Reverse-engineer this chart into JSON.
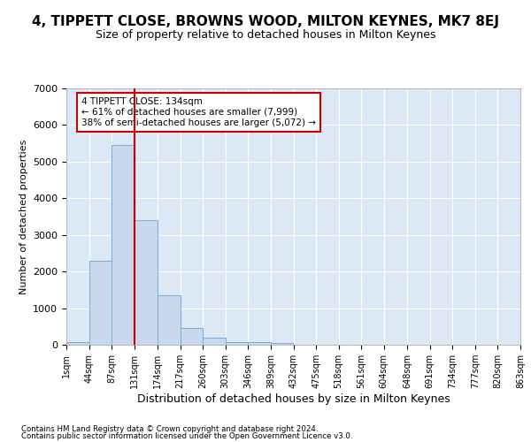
{
  "title": "4, TIPPETT CLOSE, BROWNS WOOD, MILTON KEYNES, MK7 8EJ",
  "subtitle": "Size of property relative to detached houses in Milton Keynes",
  "xlabel": "Distribution of detached houses by size in Milton Keynes",
  "ylabel": "Number of detached properties",
  "bin_edges": [
    1,
    44,
    87,
    131,
    174,
    217,
    260,
    303,
    346,
    389,
    432,
    475,
    518,
    561,
    604,
    648,
    691,
    734,
    777,
    820,
    863
  ],
  "bar_heights": [
    80,
    2300,
    5450,
    3400,
    1350,
    470,
    185,
    80,
    80,
    50,
    5,
    5,
    3,
    2,
    1,
    1,
    1,
    1,
    1,
    1
  ],
  "bar_color": "#c8d9ed",
  "bar_edgecolor": "#7aadd4",
  "vline_x": 131,
  "vline_color": "#cc0000",
  "annotation_text": "4 TIPPETT CLOSE: 134sqm\n← 61% of detached houses are smaller (7,999)\n38% of semi-detached houses are larger (5,072) →",
  "annotation_box_color": "#ffffff",
  "annotation_box_edgecolor": "#cc0000",
  "ylim": [
    0,
    7000
  ],
  "yticks": [
    0,
    1000,
    2000,
    3000,
    4000,
    5000,
    6000,
    7000
  ],
  "background_color": "#dce8f5",
  "fig_background": "#ffffff",
  "grid_color": "#ffffff",
  "title_fontsize": 11,
  "subtitle_fontsize": 9,
  "axis_fontsize": 8,
  "xlabel_fontsize": 9,
  "footnote1": "Contains HM Land Registry data © Crown copyright and database right 2024.",
  "footnote2": "Contains public sector information licensed under the Open Government Licence v3.0."
}
